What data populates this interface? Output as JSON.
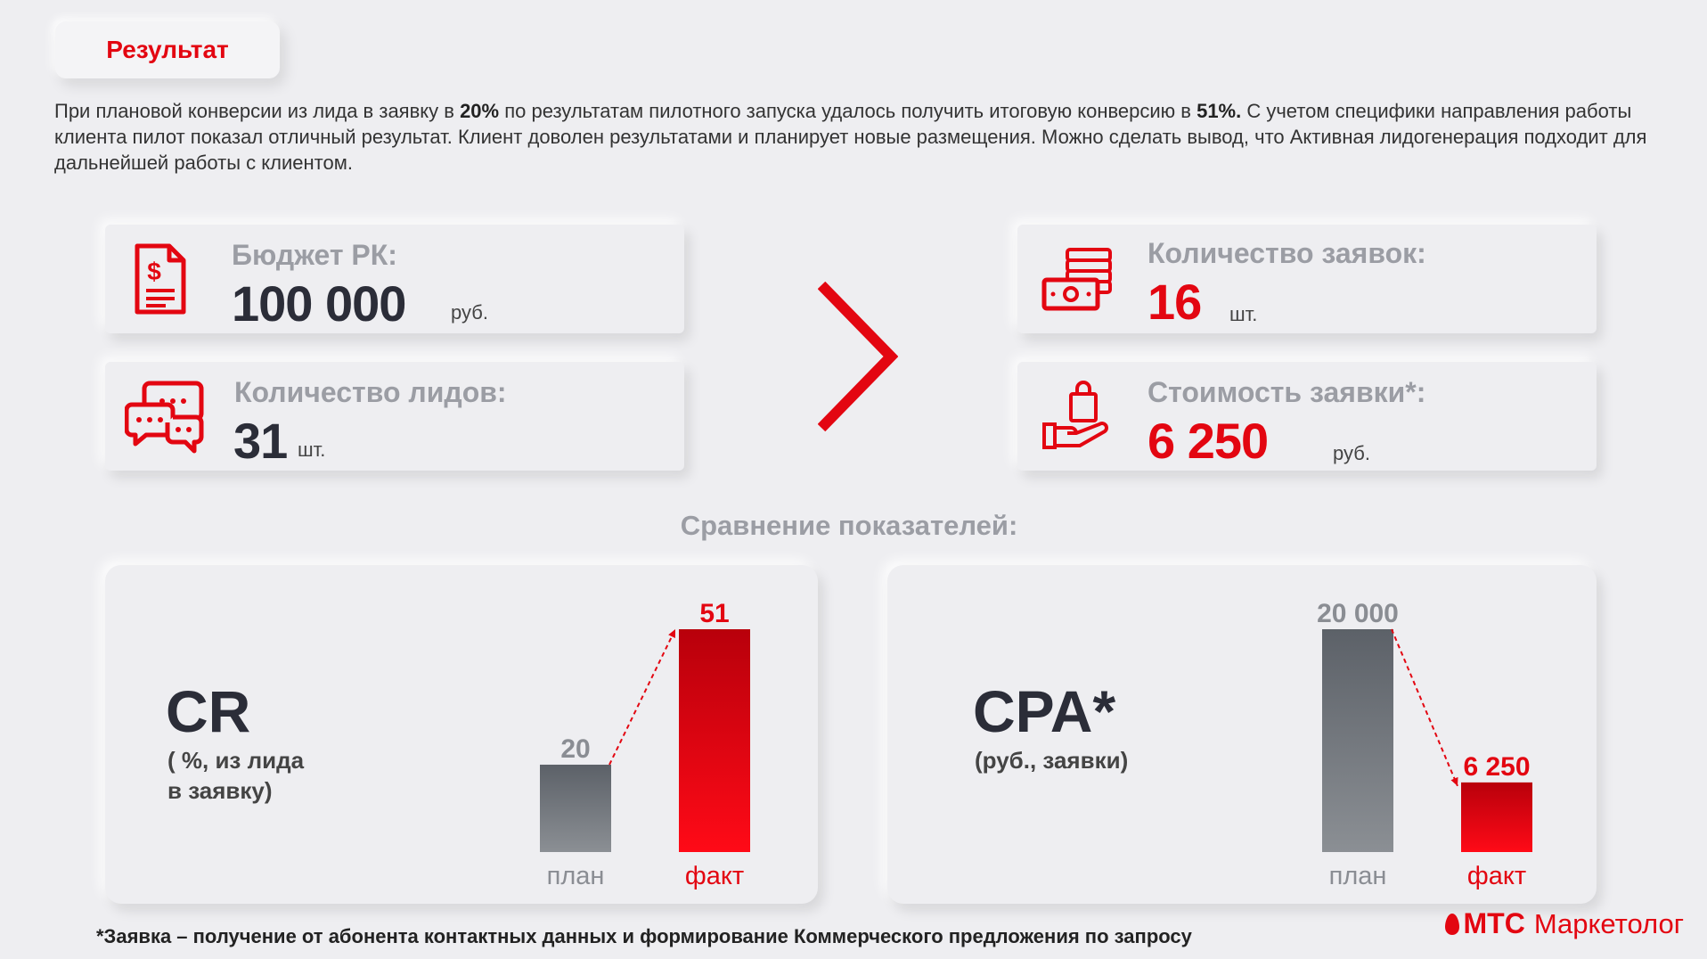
{
  "header": {
    "tag": "Результат"
  },
  "intro": {
    "p1": "При плановой конверсии из лида в заявку в ",
    "b1": "20%",
    "p2": " по результатам пилотного запуска удалось получить итоговую конверсию в ",
    "b2": "51%.",
    "p3": " С учетом специфики направления работы клиента пилот показал отличный результат. Клиент доволен результатами и планирует новые размещения. Можно сделать вывод, что Активная лидогенерация подходит для дальнейшей работы с клиентом."
  },
  "stats": {
    "budget": {
      "label": "Бюджет РК:",
      "value": "100 000",
      "unit": "руб.",
      "icon": "invoice-dollar-icon"
    },
    "leads": {
      "label": "Количество лидов:",
      "value": "31",
      "unit": "шт.",
      "icon": "chat-bubbles-icon"
    },
    "requests": {
      "label": "Количество заявок:",
      "value": "16",
      "unit": "шт.",
      "icon": "money-stack-icon"
    },
    "cost": {
      "label": "Стоимость заявки*:",
      "value": "6 250",
      "unit": "руб.",
      "icon": "hand-bag-icon"
    }
  },
  "comparison_title": "Сравнение показателей:",
  "charts": {
    "cr": {
      "title": "CR",
      "subtitle_line1": "( %, из лида",
      "subtitle_line2": "в заявку)"
    },
    "cpa": {
      "title": "CPA*",
      "subtitle_line1": "(руб., заявки)"
    }
  },
  "chart_data": [
    {
      "type": "bar",
      "title": "CR",
      "categories": [
        "план",
        "факт"
      ],
      "values": [
        20,
        51
      ],
      "value_labels": [
        "20",
        "51"
      ],
      "ylim": [
        0,
        51
      ],
      "colors": [
        "#7d8288",
        "#e30611"
      ]
    },
    {
      "type": "bar",
      "title": "CPA*",
      "categories": [
        "план",
        "факт"
      ],
      "values": [
        20000,
        6250
      ],
      "value_labels": [
        "20 000",
        "6 250"
      ],
      "ylim": [
        0,
        20000
      ],
      "colors": [
        "#7d8288",
        "#e30611"
      ]
    }
  ],
  "footnote": "*Заявка – получение от абонента контактных данных и формирование Коммерческого предложения по запросу",
  "brand": {
    "mts": "МТС",
    "name": "Маркетолог"
  },
  "colors": {
    "accent": "#e30611",
    "dark": "#2b2d38",
    "muted": "#9b9da4"
  }
}
